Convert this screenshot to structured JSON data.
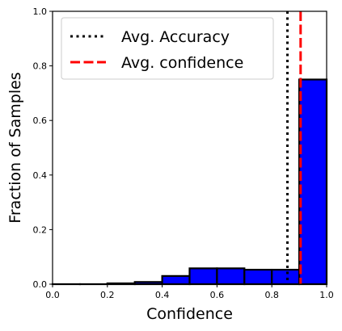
{
  "chart_data": {
    "type": "bar",
    "xlabel": "Confidence",
    "ylabel": "Fraction of Samples",
    "xlim": [
      0.0,
      1.0
    ],
    "ylim": [
      0.0,
      1.0
    ],
    "x_ticks": [
      "0.0",
      "0.2",
      "0.4",
      "0.6",
      "0.8",
      "1.0"
    ],
    "y_ticks": [
      "0.0",
      "0.2",
      "0.4",
      "0.6",
      "0.8",
      "1.0"
    ],
    "bins": [
      {
        "from": 0.0,
        "to": 0.1,
        "value": 0.0
      },
      {
        "from": 0.1,
        "to": 0.2,
        "value": 0.0
      },
      {
        "from": 0.2,
        "to": 0.3,
        "value": 0.003
      },
      {
        "from": 0.3,
        "to": 0.4,
        "value": 0.008
      },
      {
        "from": 0.4,
        "to": 0.5,
        "value": 0.03
      },
      {
        "from": 0.5,
        "to": 0.6,
        "value": 0.058
      },
      {
        "from": 0.6,
        "to": 0.7,
        "value": 0.058
      },
      {
        "from": 0.7,
        "to": 0.8,
        "value": 0.053
      },
      {
        "from": 0.8,
        "to": 0.9,
        "value": 0.053
      },
      {
        "from": 0.9,
        "to": 1.0,
        "value": 0.75
      }
    ],
    "bar_color": "#0000ff",
    "bar_edge_color": "#000000",
    "reference_lines": [
      {
        "name": "Avg. Accuracy",
        "x": 0.857,
        "color": "#000000",
        "style": "dotted"
      },
      {
        "name": "Avg. confidence",
        "x": 0.905,
        "color": "#ff0000",
        "style": "dashed"
      }
    ],
    "legend": {
      "position": "top-left",
      "entries": [
        "Avg. Accuracy",
        "Avg. confidence"
      ]
    },
    "grid": false
  }
}
